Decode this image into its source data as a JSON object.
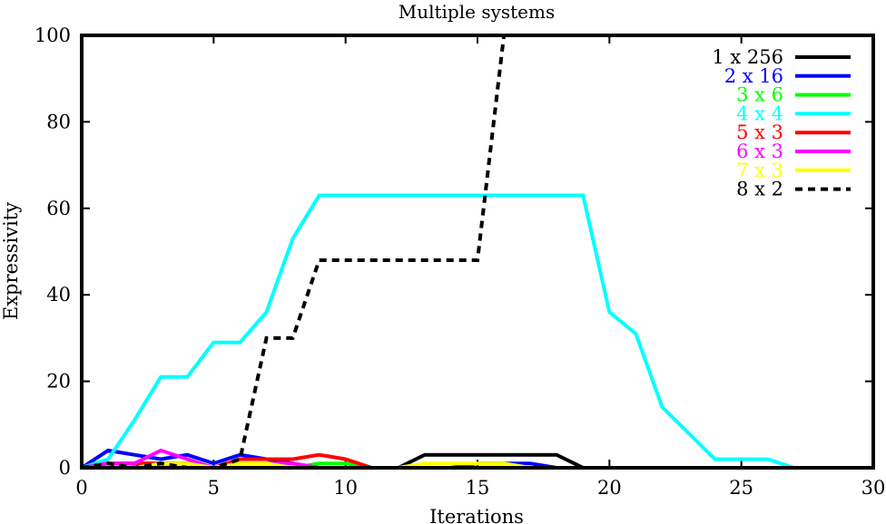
{
  "chart_data": {
    "type": "line",
    "title": "Multiple systems",
    "xlabel": "Iterations",
    "ylabel": "Expressivity",
    "xlim": [
      0,
      30
    ],
    "ylim": [
      0,
      100
    ],
    "xticks": [
      0,
      5,
      10,
      15,
      20,
      25,
      30
    ],
    "yticks": [
      0,
      20,
      40,
      60,
      80,
      100
    ],
    "grid": false,
    "legend_position": "top-right",
    "x": [
      0,
      1,
      2,
      3,
      4,
      5,
      6,
      7,
      8,
      9,
      10,
      11,
      12,
      13,
      14,
      15,
      16,
      17,
      18,
      19,
      20,
      21,
      22,
      23,
      24,
      25,
      26,
      27,
      28,
      29,
      30
    ],
    "series": [
      {
        "name": "1 x 256",
        "color": "#000000",
        "dash": "solid",
        "values": [
          0,
          1,
          1,
          1,
          1,
          0,
          0,
          0,
          0,
          0,
          0,
          0,
          0,
          3,
          3,
          3,
          3,
          3,
          3,
          0,
          0,
          0,
          0,
          0,
          0,
          0,
          0,
          0,
          0,
          0,
          0
        ]
      },
      {
        "name": "2 x 16",
        "color": "#0000ff",
        "dash": "solid",
        "values": [
          0,
          4,
          3,
          2,
          3,
          1,
          3,
          2,
          1,
          0,
          0,
          0,
          0,
          0,
          0,
          1,
          1,
          1,
          0,
          0,
          0,
          0,
          0,
          0,
          0,
          0,
          0,
          0,
          0,
          0,
          0
        ]
      },
      {
        "name": "3 x 6",
        "color": "#00ff00",
        "dash": "solid",
        "values": [
          0,
          1,
          1,
          0,
          0,
          0,
          1,
          1,
          0,
          1,
          1,
          0,
          0,
          0,
          0,
          0,
          0,
          0,
          0,
          0,
          0,
          0,
          0,
          0,
          0,
          0,
          0,
          0,
          0,
          0,
          0
        ]
      },
      {
        "name": "4 x 4",
        "color": "#00ffff",
        "dash": "solid",
        "values": [
          0,
          2,
          11,
          21,
          21,
          29,
          29,
          36,
          53,
          63,
          63,
          63,
          63,
          63,
          63,
          63,
          63,
          63,
          63,
          63,
          36,
          31,
          14,
          8,
          2,
          2,
          2,
          0,
          0,
          0,
          0
        ]
      },
      {
        "name": "5 x 3",
        "color": "#ff0000",
        "dash": "solid",
        "values": [
          0,
          1,
          1,
          1,
          1,
          0,
          2,
          2,
          2,
          3,
          2,
          0,
          0,
          0,
          0,
          0,
          0,
          0,
          0,
          0,
          0,
          0,
          0,
          0,
          0,
          0,
          0,
          0,
          0,
          0,
          0
        ]
      },
      {
        "name": "6 x 3",
        "color": "#ff00ff",
        "dash": "solid",
        "values": [
          0,
          1,
          1,
          4,
          2,
          0,
          1,
          1,
          1,
          0,
          0,
          0,
          0,
          0,
          0,
          0,
          0,
          0,
          0,
          0,
          0,
          0,
          0,
          0,
          0,
          0,
          0,
          0,
          0,
          0,
          0
        ]
      },
      {
        "name": "7 x 3",
        "color": "#ffff00",
        "dash": "solid",
        "values": [
          0,
          0,
          0,
          1,
          1,
          0,
          1,
          1,
          0,
          0,
          0,
          0,
          0,
          1,
          1,
          1,
          1,
          0,
          0,
          0,
          0,
          0,
          0,
          0,
          0,
          0,
          0,
          0,
          0,
          0,
          0
        ]
      },
      {
        "name": "8 x 2",
        "color": "#000000",
        "dash": "dotted",
        "values": [
          0,
          1,
          0,
          1,
          0,
          0,
          2,
          30,
          30,
          48,
          48,
          48,
          48,
          48,
          48,
          48,
          100,
          100,
          100,
          100,
          100,
          100,
          100,
          100,
          100,
          100,
          100,
          100,
          100,
          100,
          100
        ]
      }
    ]
  }
}
